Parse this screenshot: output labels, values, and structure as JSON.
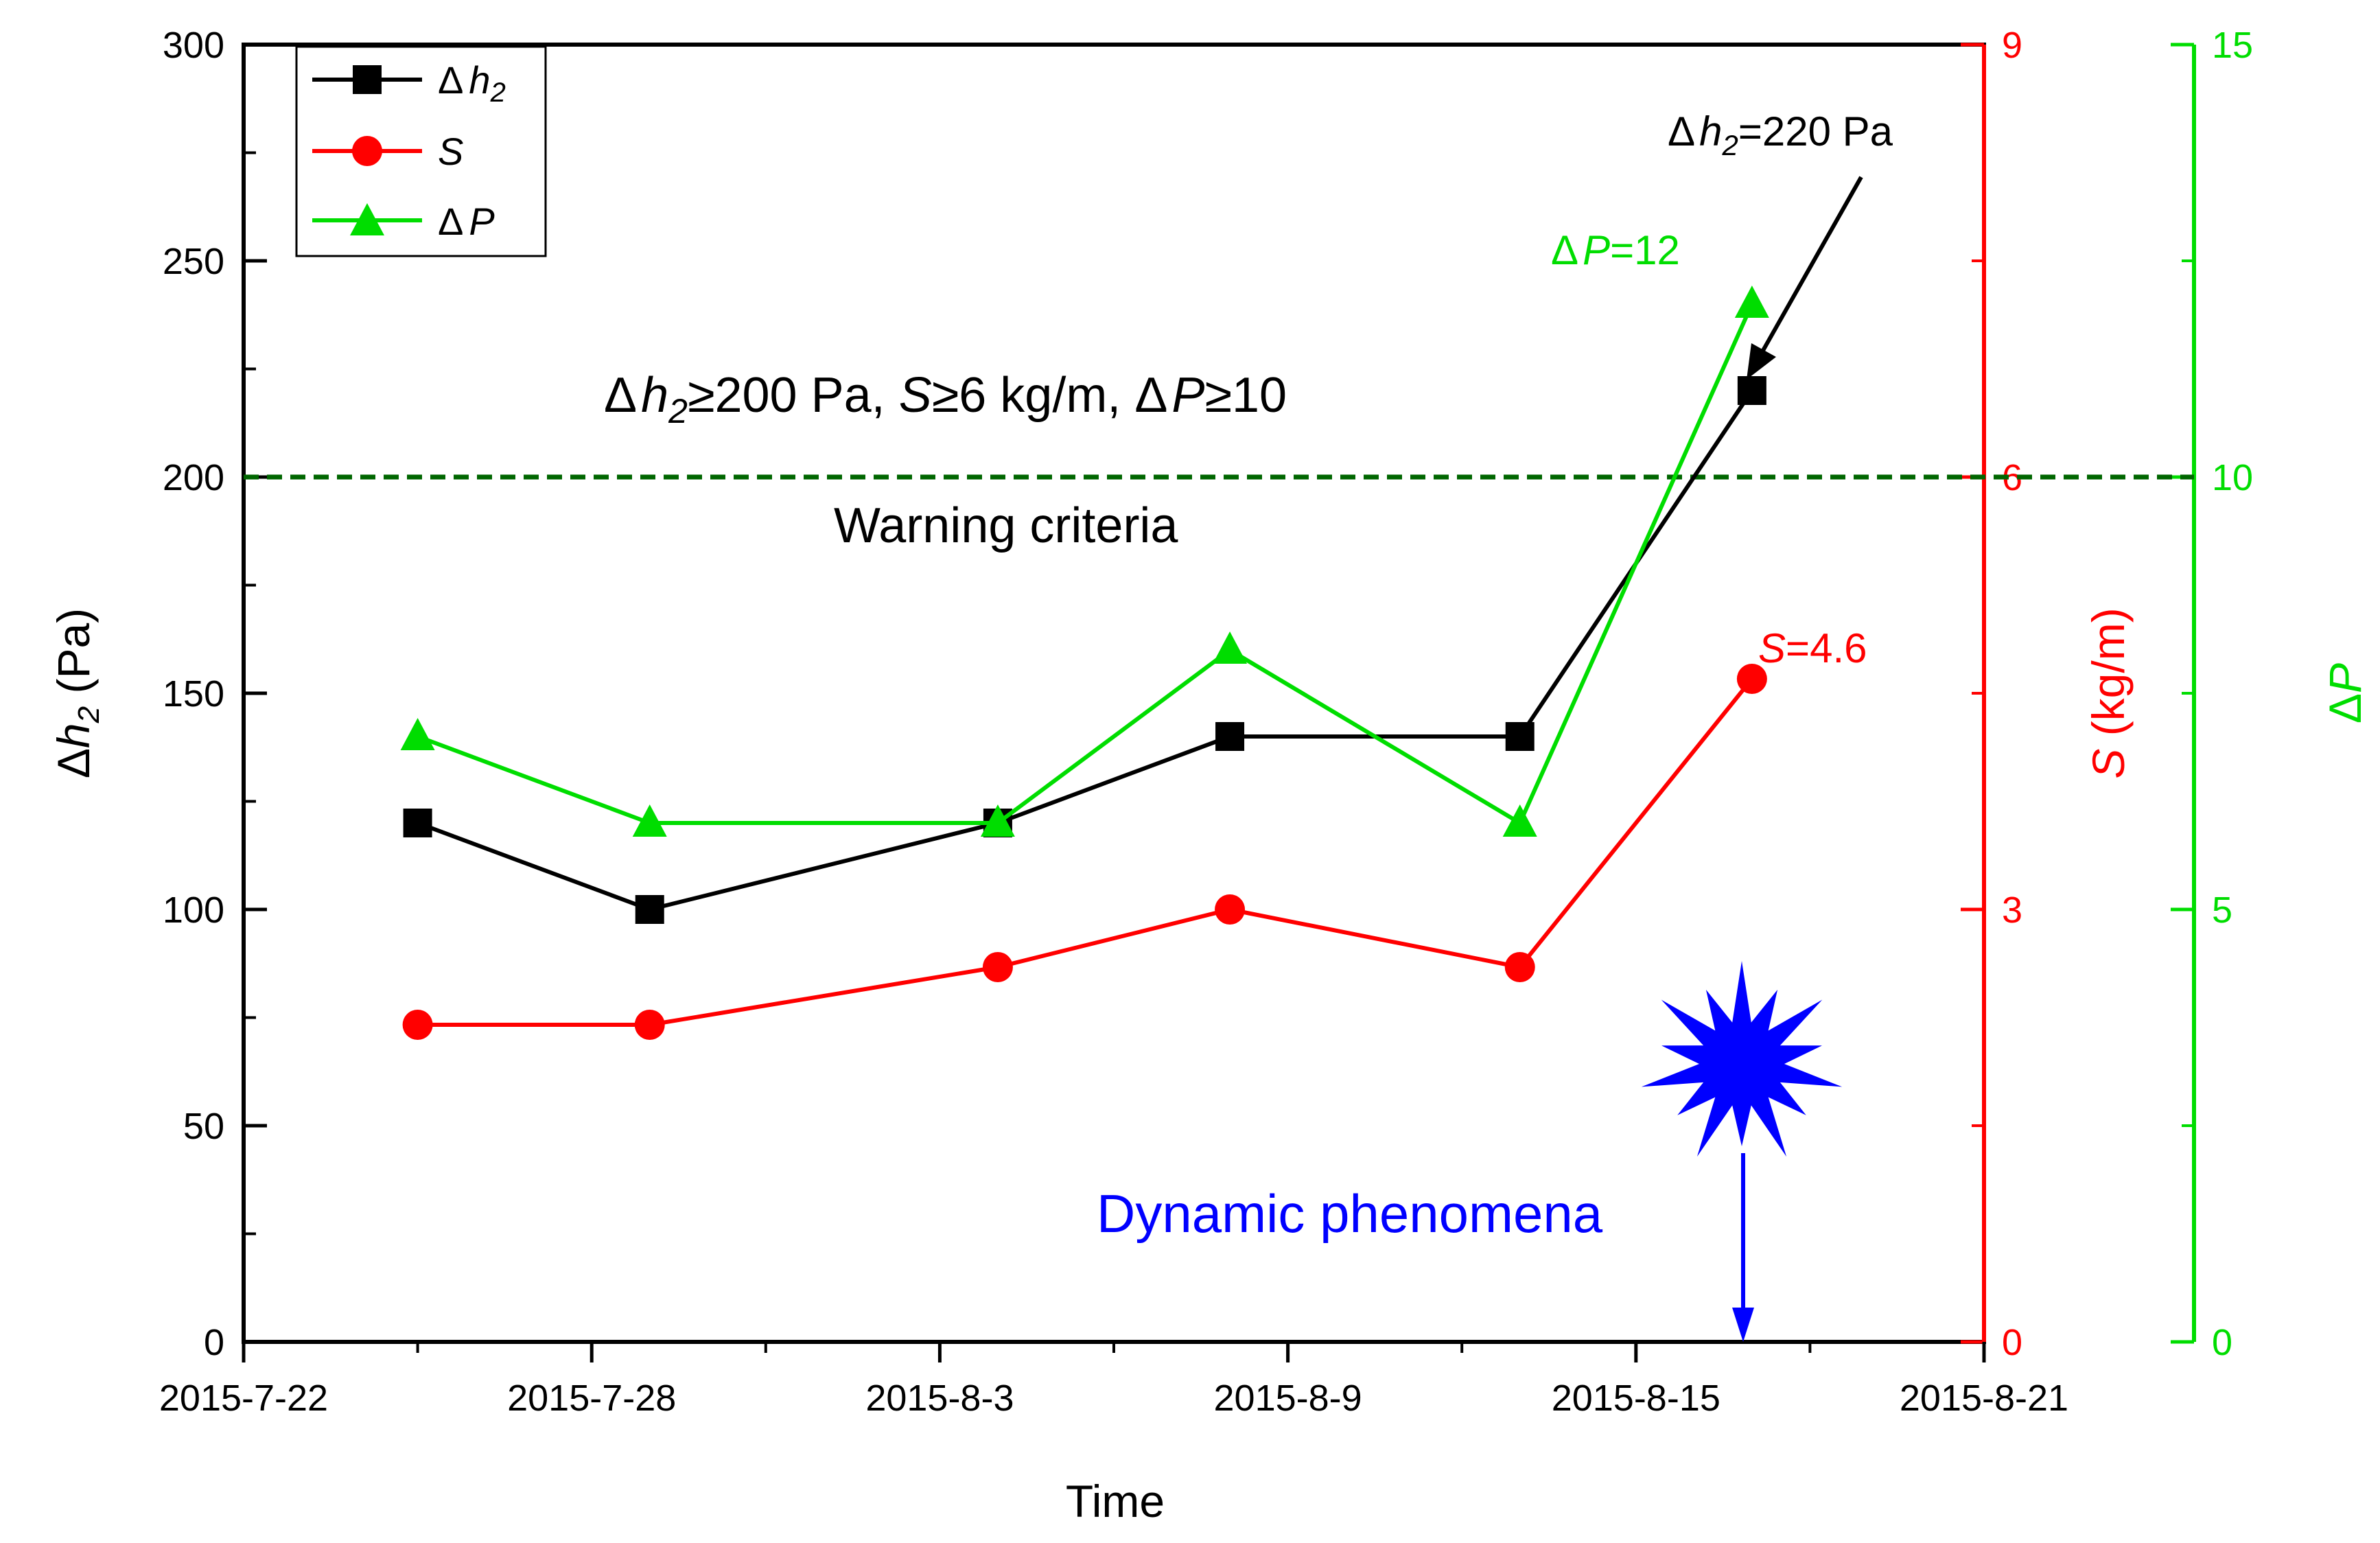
{
  "chart_data": {
    "type": "line",
    "title": "",
    "xlabel": "Time",
    "x_categories": [
      "2015-7-22",
      "2015-7-28",
      "2015-8-3",
      "2015-8-9",
      "2015-8-15",
      "2015-8-21"
    ],
    "x_dates": [
      "2015-7-25",
      "2015-7-29",
      "2015-8-4",
      "2015-8-8",
      "2015-8-13",
      "2015-8-17"
    ],
    "x_day_offsets": [
      3,
      7,
      13,
      17,
      22,
      26
    ],
    "x_range_days": [
      0,
      30
    ],
    "axes": {
      "left": {
        "label_prefix": "Δ",
        "label_var": "h",
        "label_sub": "2",
        "label_unit": " (Pa)",
        "ylim": [
          0,
          300
        ],
        "ticks": [
          "0",
          "50",
          "100",
          "150",
          "200",
          "250",
          "300"
        ],
        "color": "#000000"
      },
      "right1": {
        "label_var": "S",
        "label_unit": " (kg/m)",
        "ylim": [
          0,
          9
        ],
        "ticks": [
          "0",
          "3",
          "6",
          "9"
        ],
        "color": "#ff0000"
      },
      "right2": {
        "label_prefix": "Δ",
        "label_var": "P",
        "ylim": [
          0,
          15
        ],
        "ticks": [
          "0",
          "5",
          "10",
          "15"
        ],
        "color": "#00dd00"
      }
    },
    "series": [
      {
        "name": "Δh2",
        "legend_prefix": "Δ",
        "legend_var": "h",
        "legend_sub": "2",
        "axis": "left",
        "color": "#000000",
        "marker": "square",
        "values": [
          120,
          100,
          120,
          140,
          140,
          220
        ]
      },
      {
        "name": "S",
        "legend_var": "S",
        "axis": "right1",
        "color": "#ff0000",
        "marker": "circle",
        "values": [
          2.2,
          2.2,
          2.6,
          3.0,
          2.6,
          4.6
        ]
      },
      {
        "name": "ΔP",
        "legend_prefix": "Δ",
        "legend_var": "P",
        "axis": "right2",
        "color": "#00dd00",
        "marker": "triangle",
        "values": [
          7,
          6,
          6,
          8,
          6,
          12
        ]
      }
    ],
    "threshold": {
      "value": 200,
      "axis": "left",
      "color": "#006600"
    },
    "annotations": {
      "criteria_prefix": "Δ",
      "criteria_var": "h",
      "criteria_sub": "2",
      "criteria_rest1": "≥200 Pa, ",
      "criteria_var2": "S",
      "criteria_rest2": "≥6 kg/m, ",
      "criteria_prefix3": "Δ",
      "criteria_var3": "P",
      "criteria_rest3": "≥10",
      "warning": "Warning criteria",
      "dh2_prefix": "Δ",
      "dh2_var": "h",
      "dh2_sub": "2",
      "dh2_value": "=220 Pa",
      "dp_prefix": "Δ",
      "dp_var": "P",
      "dp_value": "=12",
      "s_var": "S",
      "s_value": "=4.6",
      "dynamic": "Dynamic phenomena"
    },
    "colors": {
      "burst": "#0000ff",
      "dynamic_text": "#0000ff"
    }
  }
}
